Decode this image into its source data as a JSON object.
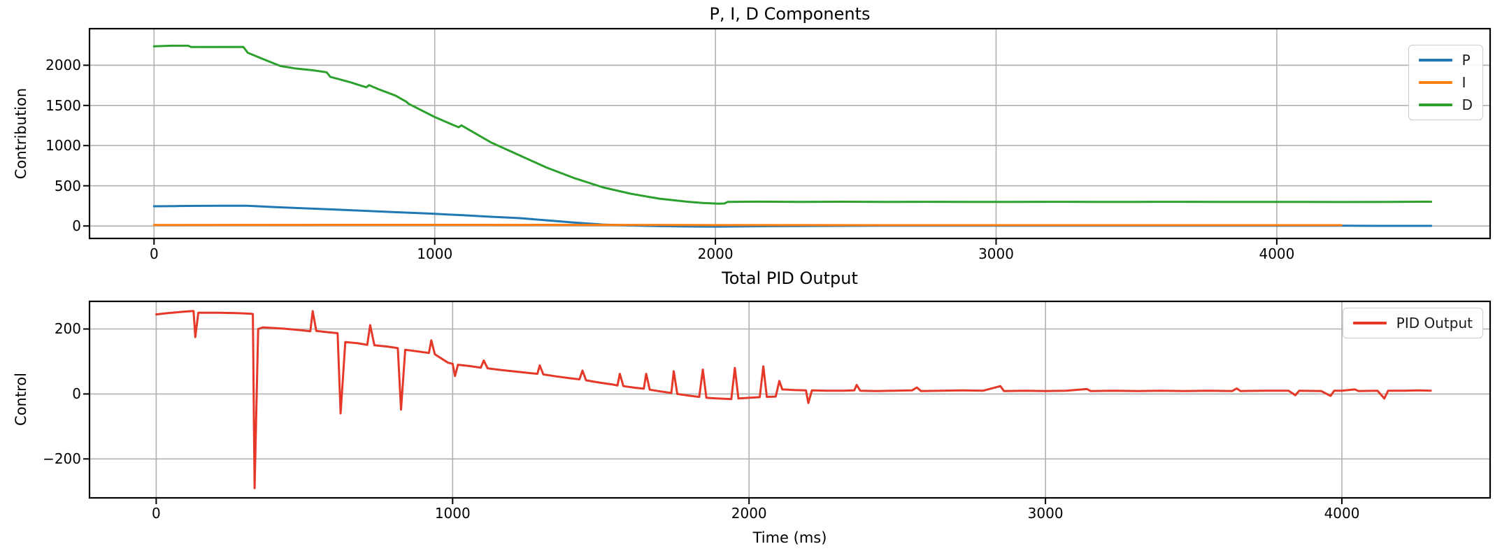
{
  "figure": {
    "background": "#ffffff",
    "grid_color": "#b0b0b0",
    "spine_color": "#000000",
    "tick_color": "#000000",
    "legend_border_color": "#cccccc"
  },
  "chart_data": [
    {
      "type": "line",
      "title": "P, I, D Components",
      "xlabel": "",
      "ylabel": "Contribution",
      "xlim": [
        -230,
        4760
      ],
      "ylim": [
        -155,
        2455
      ],
      "xticks": [
        0,
        1000,
        2000,
        3000,
        4000
      ],
      "yticks": [
        0,
        500,
        1000,
        1500,
        2000
      ],
      "grid": true,
      "legend_position": "upper right",
      "series": [
        {
          "name": "P",
          "color": "#1f77b4",
          "points": [
            [
              0,
              245
            ],
            [
              80,
              248
            ],
            [
              160,
              250
            ],
            [
              240,
              251
            ],
            [
              330,
              252
            ],
            [
              365,
              246
            ],
            [
              450,
              232
            ],
            [
              550,
              218
            ],
            [
              650,
              204
            ],
            [
              750,
              189
            ],
            [
              850,
              174
            ],
            [
              950,
              159
            ],
            [
              1000,
              151
            ],
            [
              1100,
              134
            ],
            [
              1200,
              115
            ],
            [
              1300,
              98
            ],
            [
              1400,
              70
            ],
            [
              1500,
              42
            ],
            [
              1600,
              18
            ],
            [
              1700,
              6
            ],
            [
              1800,
              -2
            ],
            [
              1900,
              -6
            ],
            [
              2000,
              -8
            ],
            [
              2100,
              -5
            ],
            [
              2200,
              -2
            ],
            [
              2350,
              1
            ],
            [
              2600,
              3
            ],
            [
              3000,
              3
            ],
            [
              3400,
              3
            ],
            [
              3800,
              3
            ],
            [
              4100,
              3
            ],
            [
              4230,
              3
            ],
            [
              4350,
              2
            ],
            [
              4550,
              2
            ]
          ]
        },
        {
          "name": "I",
          "color": "#ff7f0e",
          "points": [
            [
              0,
              12
            ],
            [
              300,
              14
            ],
            [
              700,
              15
            ],
            [
              1100,
              15
            ],
            [
              1500,
              14
            ],
            [
              1900,
              12
            ],
            [
              2300,
              11
            ],
            [
              2700,
              10
            ],
            [
              3100,
              10
            ],
            [
              3500,
              10
            ],
            [
              3900,
              10
            ],
            [
              4230,
              10
            ]
          ]
        },
        {
          "name": "D",
          "color": "#2ca02c",
          "points": [
            [
              0,
              2235
            ],
            [
              60,
              2243
            ],
            [
              122,
              2243
            ],
            [
              132,
              2227
            ],
            [
              318,
              2228
            ],
            [
              334,
              2155
            ],
            [
              400,
              2060
            ],
            [
              450,
              1990
            ],
            [
              500,
              1962
            ],
            [
              560,
              1940
            ],
            [
              615,
              1912
            ],
            [
              628,
              1856
            ],
            [
              700,
              1788
            ],
            [
              726,
              1758
            ],
            [
              756,
              1726
            ],
            [
              766,
              1752
            ],
            [
              800,
              1702
            ],
            [
              860,
              1622
            ],
            [
              898,
              1548
            ],
            [
              908,
              1518
            ],
            [
              1000,
              1355
            ],
            [
              1085,
              1228
            ],
            [
              1095,
              1252
            ],
            [
              1200,
              1040
            ],
            [
              1300,
              882
            ],
            [
              1400,
              725
            ],
            [
              1500,
              592
            ],
            [
              1600,
              480
            ],
            [
              1700,
              400
            ],
            [
              1800,
              340
            ],
            [
              1900,
              302
            ],
            [
              1955,
              286
            ],
            [
              2010,
              278
            ],
            [
              2032,
              280
            ],
            [
              2044,
              300
            ],
            [
              2150,
              303
            ],
            [
              2300,
              300
            ],
            [
              2450,
              302
            ],
            [
              2600,
              300
            ],
            [
              2750,
              301
            ],
            [
              2900,
              299
            ],
            [
              3050,
              300
            ],
            [
              3200,
              301
            ],
            [
              3350,
              299
            ],
            [
              3500,
              300
            ],
            [
              3650,
              301
            ],
            [
              3800,
              300
            ],
            [
              3950,
              299
            ],
            [
              4100,
              300
            ],
            [
              4250,
              298
            ],
            [
              4400,
              300
            ],
            [
              4550,
              302
            ]
          ]
        }
      ]
    },
    {
      "type": "line",
      "title": "Total PID Output",
      "xlabel": "Time (ms)",
      "ylabel": "Control",
      "xlim": [
        -225,
        4500
      ],
      "ylim": [
        -320,
        285
      ],
      "xticks": [
        0,
        1000,
        2000,
        3000,
        4000
      ],
      "yticks": [
        -200,
        0,
        200
      ],
      "grid": true,
      "legend_position": "upper right",
      "series": [
        {
          "name": "PID Output",
          "color": "#e53829",
          "points": [
            [
              0,
              245
            ],
            [
              40,
              249
            ],
            [
              90,
              253
            ],
            [
              120,
              255
            ],
            [
              126,
              255
            ],
            [
              132,
              175
            ],
            [
              142,
              250
            ],
            [
              210,
              250
            ],
            [
              270,
              249
            ],
            [
              318,
              247
            ],
            [
              326,
              246
            ],
            [
              332,
              -290
            ],
            [
              344,
              200
            ],
            [
              360,
              205
            ],
            [
              430,
              201
            ],
            [
              480,
              197
            ],
            [
              520,
              193
            ],
            [
              528,
              255
            ],
            [
              540,
              194
            ],
            [
              580,
              190
            ],
            [
              612,
              187
            ],
            [
              622,
              -60
            ],
            [
              638,
              160
            ],
            [
              680,
              156
            ],
            [
              712,
              151
            ],
            [
              722,
              212
            ],
            [
              736,
              150
            ],
            [
              780,
              146
            ],
            [
              815,
              141
            ],
            [
              826,
              -48
            ],
            [
              840,
              136
            ],
            [
              890,
              130
            ],
            [
              920,
              126
            ],
            [
              928,
              165
            ],
            [
              940,
              122
            ],
            [
              985,
              96
            ],
            [
              1000,
              93
            ],
            [
              1008,
              55
            ],
            [
              1018,
              90
            ],
            [
              1055,
              86
            ],
            [
              1095,
              81
            ],
            [
              1105,
              103
            ],
            [
              1118,
              79
            ],
            [
              1160,
              74
            ],
            [
              1210,
              69
            ],
            [
              1262,
              64
            ],
            [
              1286,
              62
            ],
            [
              1294,
              88
            ],
            [
              1306,
              60
            ],
            [
              1350,
              54
            ],
            [
              1400,
              48
            ],
            [
              1428,
              45
            ],
            [
              1438,
              72
            ],
            [
              1450,
              42
            ],
            [
              1495,
              35
            ],
            [
              1540,
              29
            ],
            [
              1556,
              26
            ],
            [
              1564,
              62
            ],
            [
              1576,
              24
            ],
            [
              1615,
              19
            ],
            [
              1645,
              16
            ],
            [
              1653,
              62
            ],
            [
              1665,
              13
            ],
            [
              1700,
              8
            ],
            [
              1738,
              3
            ],
            [
              1746,
              70
            ],
            [
              1758,
              0
            ],
            [
              1795,
              -5
            ],
            [
              1832,
              -9
            ],
            [
              1844,
              75
            ],
            [
              1856,
              -12
            ],
            [
              1895,
              -14
            ],
            [
              1940,
              -16
            ],
            [
              1952,
              80
            ],
            [
              1964,
              -14
            ],
            [
              2000,
              -12
            ],
            [
              2036,
              -10
            ],
            [
              2048,
              85
            ],
            [
              2060,
              -9
            ],
            [
              2090,
              -8
            ],
            [
              2102,
              40
            ],
            [
              2112,
              14
            ],
            [
              2150,
              12
            ],
            [
              2192,
              11
            ],
            [
              2200,
              -28
            ],
            [
              2212,
              11
            ],
            [
              2260,
              10
            ],
            [
              2320,
              10
            ],
            [
              2355,
              11
            ],
            [
              2363,
              28
            ],
            [
              2375,
              10
            ],
            [
              2430,
              9
            ],
            [
              2490,
              10
            ],
            [
              2550,
              11
            ],
            [
              2566,
              20
            ],
            [
              2580,
              9
            ],
            [
              2650,
              10
            ],
            [
              2720,
              11
            ],
            [
              2790,
              10
            ],
            [
              2848,
              24
            ],
            [
              2860,
              9
            ],
            [
              2930,
              10
            ],
            [
              3000,
              9
            ],
            [
              3070,
              10
            ],
            [
              3140,
              15
            ],
            [
              3152,
              9
            ],
            [
              3230,
              10
            ],
            [
              3310,
              9
            ],
            [
              3390,
              10
            ],
            [
              3470,
              9
            ],
            [
              3550,
              10
            ],
            [
              3630,
              9
            ],
            [
              3645,
              17
            ],
            [
              3658,
              9
            ],
            [
              3740,
              10
            ],
            [
              3820,
              10
            ],
            [
              3843,
              -4
            ],
            [
              3856,
              10
            ],
            [
              3930,
              9
            ],
            [
              3962,
              -6
            ],
            [
              3974,
              10
            ],
            [
              4000,
              10
            ],
            [
              4043,
              14
            ],
            [
              4056,
              9
            ],
            [
              4120,
              10
            ],
            [
              4143,
              -14
            ],
            [
              4156,
              10
            ],
            [
              4210,
              10
            ],
            [
              4260,
              11
            ],
            [
              4300,
              10
            ]
          ]
        }
      ]
    }
  ]
}
